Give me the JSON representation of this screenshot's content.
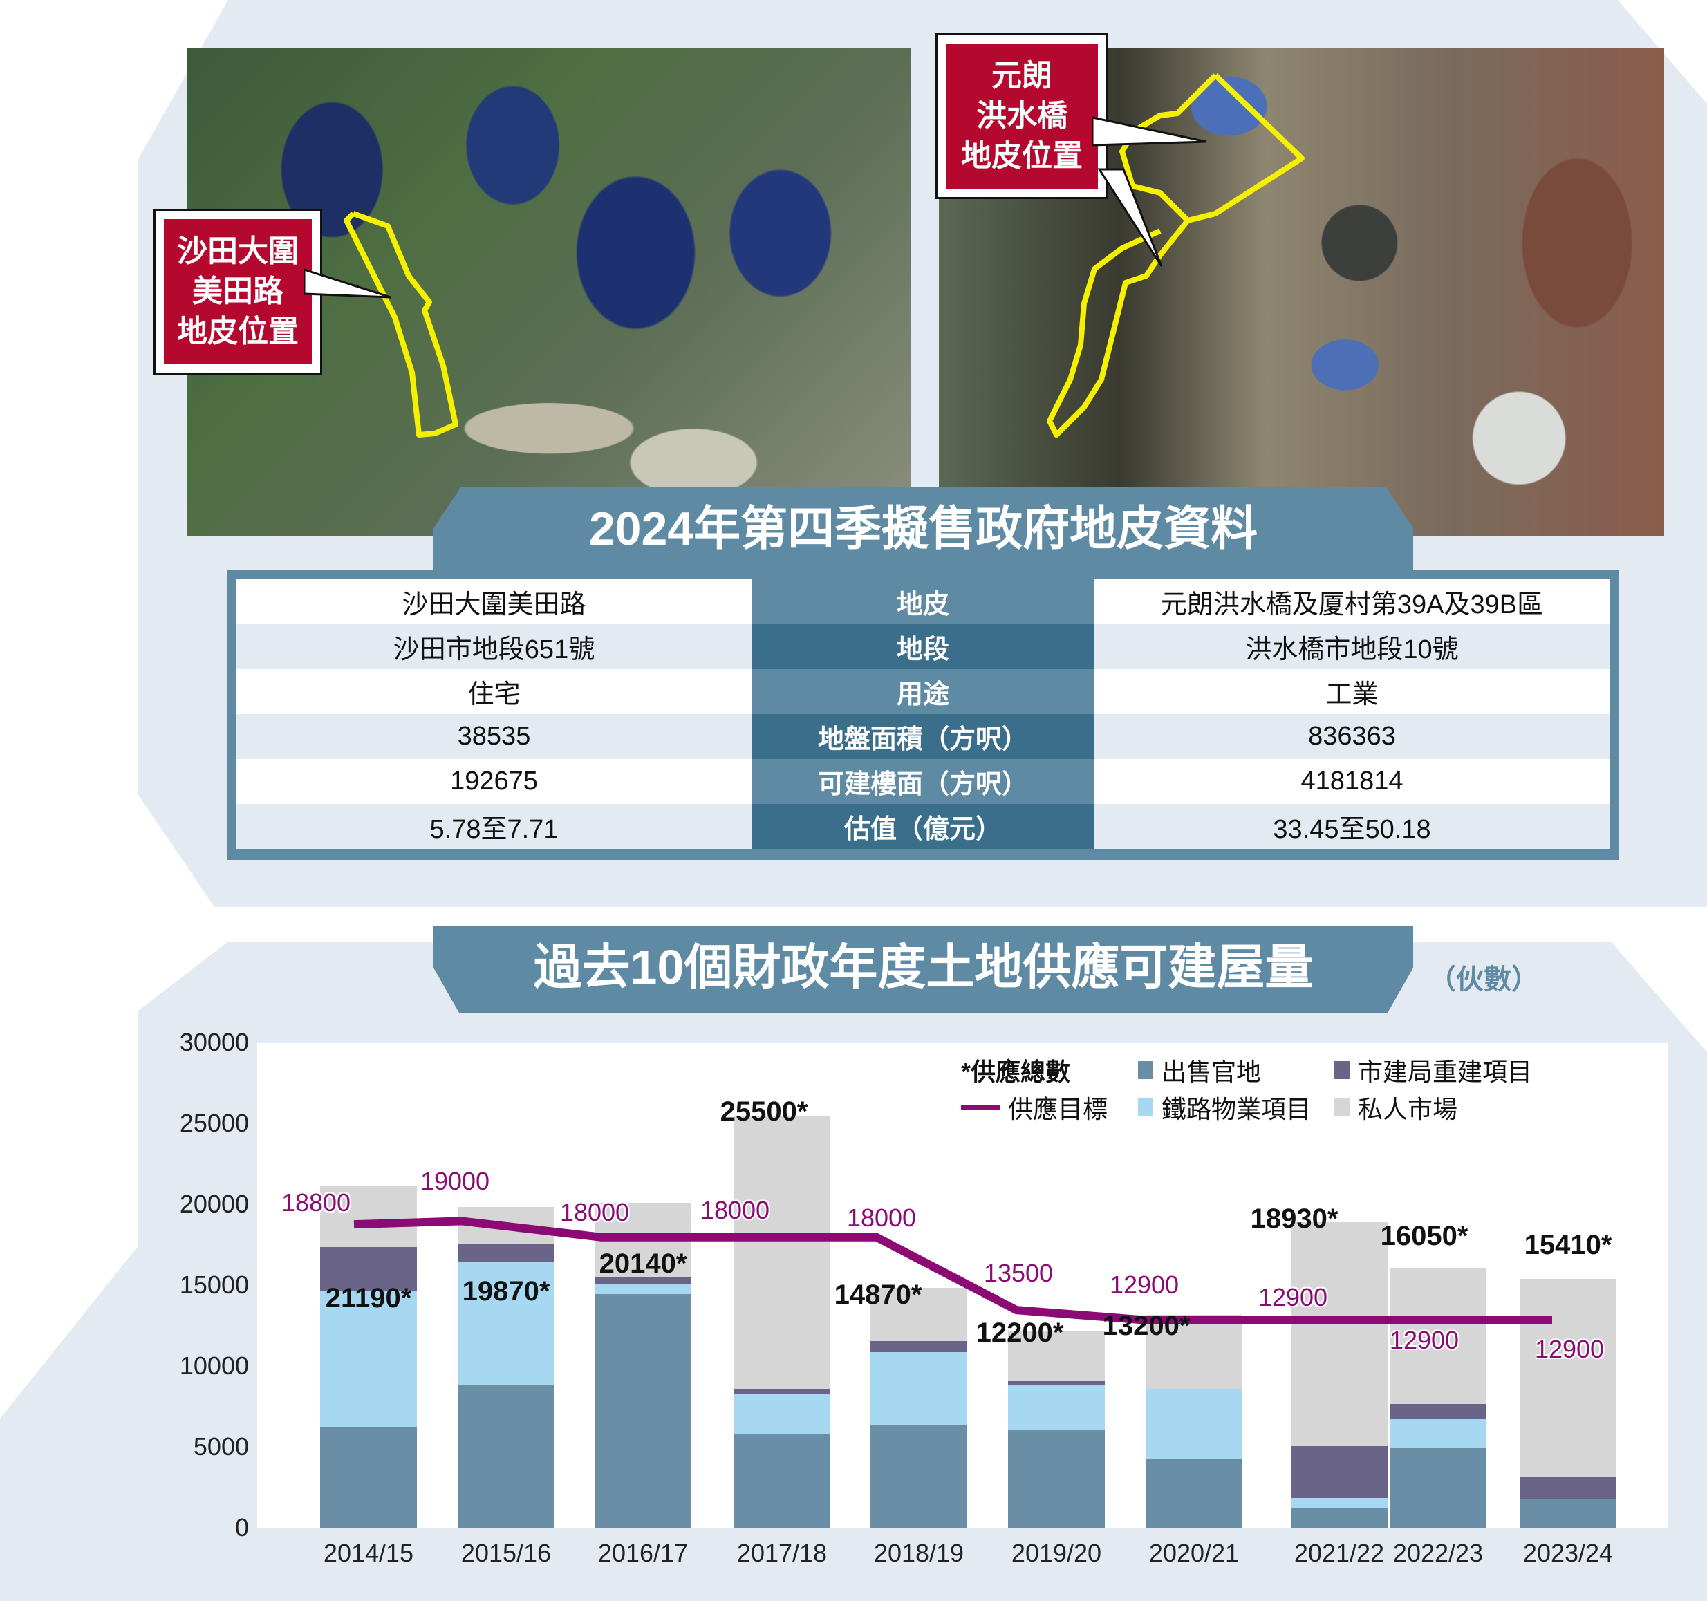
{
  "top_section": {
    "title": "2024年第四季擬售政府地皮資料",
    "callout_left": [
      "沙田大圍",
      "美田路",
      "地皮位置"
    ],
    "callout_right": [
      "元朗",
      "洪水橋",
      "地皮位置"
    ],
    "table": {
      "rows": [
        {
          "label": "地皮",
          "left": "沙田大圍美田路",
          "right": "元朗洪水橋及厦村第39A及39B區"
        },
        {
          "label": "地段",
          "left": "沙田市地段651號",
          "right": "洪水橋市地段10號"
        },
        {
          "label": "用途",
          "left": "住宅",
          "right": "工業"
        },
        {
          "label": "地盤面積（方呎）",
          "left": "38535",
          "right": "836363"
        },
        {
          "label": "可建樓面（方呎）",
          "left": "192675",
          "right": "4181814"
        },
        {
          "label": "估值（億元）",
          "left": "5.78至7.71",
          "right": "33.45至50.18"
        }
      ]
    }
  },
  "chart_section": {
    "title": "過去10個財政年度土地供應可建屋量",
    "unit": "（伙數）"
  },
  "colors": {
    "sale": "#6a8ea5",
    "rail": "#a6d8f2",
    "ura": "#6a6488",
    "private": "#d6d6d6",
    "target": "#8b0a74",
    "band": "#5f8aa3",
    "callout": "#b5082f"
  },
  "legend": {
    "total_note": "*供應總數",
    "target": "供應目標",
    "sale": "出售官地",
    "rail": "鐵路物業項目",
    "ura": "市建局重建項目",
    "private": "私人市場"
  },
  "chart_data": {
    "type": "bar",
    "stacked": true,
    "title": "過去10個財政年度土地供應可建屋量",
    "ylabel": "伙數",
    "xlabel": "",
    "ylim": [
      0,
      30000
    ],
    "yticks": [
      0,
      5000,
      10000,
      15000,
      20000,
      25000,
      30000
    ],
    "grid": false,
    "legend_position": "top-right",
    "categories": [
      "2014/15",
      "2015/16",
      "2016/17",
      "2017/18",
      "2018/19",
      "2019/20",
      "2020/21",
      "2021/22",
      "2022/23",
      "2023/24"
    ],
    "series": [
      {
        "name": "出售官地",
        "values": [
          6300,
          8900,
          14500,
          5800,
          6400,
          6100,
          4300,
          1300,
          5000,
          1800
        ]
      },
      {
        "name": "鐵路物業項目",
        "values": [
          8400,
          7600,
          600,
          2500,
          4500,
          2800,
          4300,
          600,
          1800,
          0
        ]
      },
      {
        "name": "市建局重建項目",
        "values": [
          2700,
          1100,
          400,
          300,
          700,
          200,
          0,
          3200,
          900,
          1400
        ]
      },
      {
        "name": "私人市場",
        "values": [
          3790,
          2270,
          4640,
          16900,
          3270,
          3100,
          4600,
          13830,
          8350,
          12210
        ]
      }
    ],
    "totals": [
      21190,
      19870,
      20140,
      25500,
      14870,
      12200,
      13200,
      18930,
      16050,
      15410
    ],
    "totals_labels": [
      "21190*",
      "19870*",
      "20140*",
      "25500*",
      "14870*",
      "12200*",
      "13200*",
      "18930*",
      "16050*",
      "15410*"
    ],
    "line_series": {
      "name": "供應目標",
      "values": [
        18800,
        19000,
        18000,
        18000,
        18000,
        13500,
        12900,
        12900,
        12900,
        12900
      ]
    }
  }
}
